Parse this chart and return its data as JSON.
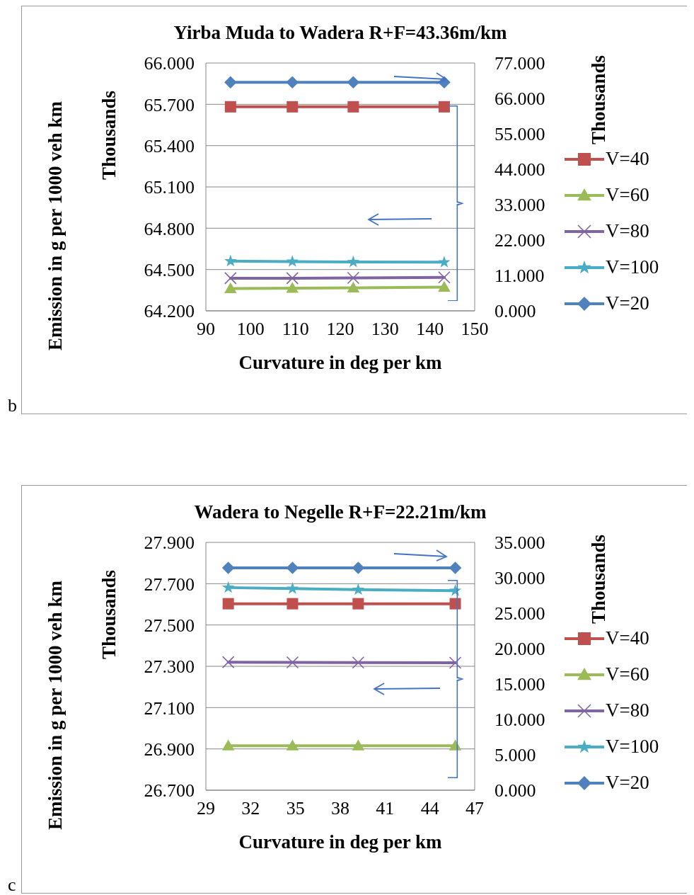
{
  "chart_data": [
    {
      "type": "line",
      "title": "Yirba Muda to Wadera R+F=43.36m/km",
      "xlabel": "Curvature in deg per km",
      "ylabel": "Emission in g per 1000 veh km",
      "y2label": "Thousands",
      "annotations": [
        "Thousands",
        "b"
      ],
      "x": [
        95.5,
        109.3,
        122.9,
        143.2
      ],
      "xlim": [
        90,
        150
      ],
      "xticks": [
        90,
        100,
        110,
        120,
        130,
        140,
        150
      ],
      "ylim": [
        64.2,
        66.0
      ],
      "yticks": [
        {
          "value": 64.2,
          "label": "64.200"
        },
        {
          "value": 64.5,
          "label": "64.500"
        },
        {
          "value": 64.8,
          "label": "64.800"
        },
        {
          "value": 65.1,
          "label": "65.100"
        },
        {
          "value": 65.4,
          "label": "65.400"
        },
        {
          "value": 65.7,
          "label": "65.700"
        },
        {
          "value": 66.0,
          "label": "66.000"
        }
      ],
      "y2lim": [
        0,
        77
      ],
      "y2ticks": [
        {
          "value": 0,
          "label": "0.000"
        },
        {
          "value": 11,
          "label": "11.000"
        },
        {
          "value": 22,
          "label": "22.000"
        },
        {
          "value": 33,
          "label": "33.000"
        },
        {
          "value": 44,
          "label": "44.000"
        },
        {
          "value": 55,
          "label": "55.000"
        },
        {
          "value": 66,
          "label": "66.000"
        },
        {
          "value": 77,
          "label": "77.000"
        }
      ],
      "grid": "y",
      "legend": "right",
      "series": [
        {
          "name": "V=40",
          "color": "#c0504d",
          "marker": "square",
          "values": [
            65.682,
            65.682,
            65.682,
            65.682
          ]
        },
        {
          "name": "V=60",
          "color": "#9bbb59",
          "marker": "triangle",
          "values": [
            64.362,
            64.364,
            64.367,
            64.372
          ]
        },
        {
          "name": "V=80",
          "color": "#8064a2",
          "marker": "cross",
          "values": [
            64.437,
            64.437,
            64.439,
            64.443
          ]
        },
        {
          "name": "V=100",
          "color": "#4bacc6",
          "marker": "star",
          "values": [
            64.561,
            64.558,
            64.555,
            64.553
          ]
        },
        {
          "name": "V=20",
          "color": "#4f81bd",
          "marker": "diamond",
          "axis": "y2",
          "values": [
            71.0,
            71.0,
            71.0,
            71.0
          ]
        }
      ]
    },
    {
      "type": "line",
      "title": "Wadera to Negelle R+F=22.21m/km",
      "xlabel": "Curvature in deg per km",
      "ylabel": "Emission in g per 1000 veh km",
      "y2label": "Thousands",
      "annotations": [
        "Thousands",
        "c"
      ],
      "x": [
        30.5,
        34.8,
        39.2,
        45.7
      ],
      "xlim": [
        29,
        47
      ],
      "xticks": [
        29,
        32,
        35,
        38,
        41,
        44,
        47
      ],
      "ylim": [
        26.7,
        27.9
      ],
      "yticks": [
        {
          "value": 26.7,
          "label": "26.700"
        },
        {
          "value": 26.9,
          "label": "26.900"
        },
        {
          "value": 27.1,
          "label": "27.100"
        },
        {
          "value": 27.3,
          "label": "27.300"
        },
        {
          "value": 27.5,
          "label": "27.500"
        },
        {
          "value": 27.7,
          "label": "27.700"
        },
        {
          "value": 27.9,
          "label": "27.900"
        }
      ],
      "y2lim": [
        0,
        35
      ],
      "y2ticks": [
        {
          "value": 0,
          "label": "0.000"
        },
        {
          "value": 5,
          "label": "5.000"
        },
        {
          "value": 10,
          "label": "10.000"
        },
        {
          "value": 15,
          "label": "15.000"
        },
        {
          "value": 20,
          "label": "20.000"
        },
        {
          "value": 25,
          "label": "25.000"
        },
        {
          "value": 30,
          "label": "30.000"
        },
        {
          "value": 35,
          "label": "35.000"
        }
      ],
      "grid": "y",
      "legend": "right",
      "series": [
        {
          "name": "V=40",
          "color": "#c0504d",
          "marker": "square",
          "values": [
            27.603,
            27.603,
            27.603,
            27.603
          ]
        },
        {
          "name": "V=60",
          "color": "#9bbb59",
          "marker": "triangle",
          "values": [
            26.915,
            26.915,
            26.915,
            26.915
          ]
        },
        {
          "name": "V=80",
          "color": "#8064a2",
          "marker": "cross",
          "values": [
            27.32,
            27.319,
            27.318,
            27.317
          ]
        },
        {
          "name": "V=100",
          "color": "#4bacc6",
          "marker": "star",
          "values": [
            27.681,
            27.676,
            27.671,
            27.666
          ]
        },
        {
          "name": "V=20",
          "color": "#4f81bd",
          "marker": "diamond",
          "axis": "y2",
          "values": [
            31.4,
            31.4,
            31.4,
            31.4
          ]
        }
      ]
    }
  ]
}
